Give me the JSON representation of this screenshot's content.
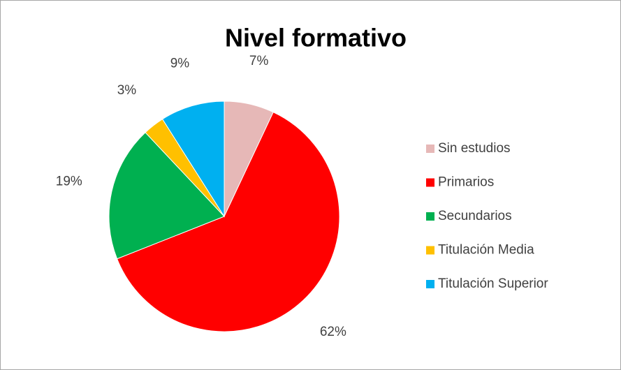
{
  "chart_data": {
    "type": "pie",
    "title": "Nivel formativo",
    "categories": [
      "Sin estudios",
      "Primarios",
      "Secundarios",
      "Titulación Media",
      "Titulación Superior"
    ],
    "values": [
      7,
      62,
      19,
      3,
      9
    ],
    "value_labels": [
      "7%",
      "62%",
      "19%",
      "3%",
      "9%"
    ],
    "colors": [
      "#e6b8b7",
      "#ff0000",
      "#00b050",
      "#ffc000",
      "#00b0f0"
    ],
    "legend": "right"
  }
}
